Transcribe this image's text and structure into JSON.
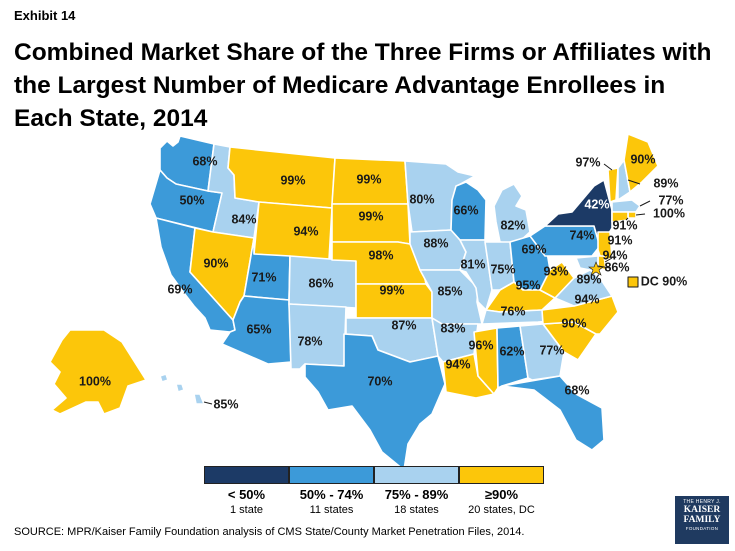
{
  "header": {
    "exhibit": "Exhibit 14",
    "title": "Combined Market Share of the Three Firms or Affiliates with the Largest Number of Medicare Advantage Enrollees in Each State, 2014"
  },
  "colors": {
    "lt50": "#1c3a66",
    "50to74": "#3c9ad9",
    "75to89": "#a9d2ef",
    "ge90": "#fcc60a",
    "border": "#ffffff",
    "outline": "#1a1a1a"
  },
  "states": [
    {
      "id": "WA",
      "value": "68%",
      "category": "50to74"
    },
    {
      "id": "OR",
      "value": "50%",
      "category": "50to74"
    },
    {
      "id": "CA",
      "value": "69%",
      "category": "50to74"
    },
    {
      "id": "ID",
      "value": "84%",
      "category": "75to89"
    },
    {
      "id": "NV",
      "value": "90%",
      "category": "ge90"
    },
    {
      "id": "MT",
      "value": "99%",
      "category": "ge90"
    },
    {
      "id": "WY",
      "value": "94%",
      "category": "ge90"
    },
    {
      "id": "UT",
      "value": "71%",
      "category": "50to74"
    },
    {
      "id": "AZ",
      "value": "65%",
      "category": "50to74"
    },
    {
      "id": "CO",
      "value": "86%",
      "category": "75to89"
    },
    {
      "id": "NM",
      "value": "78%",
      "category": "75to89"
    },
    {
      "id": "ND",
      "value": "99%",
      "category": "ge90"
    },
    {
      "id": "SD",
      "value": "99%",
      "category": "ge90"
    },
    {
      "id": "NE",
      "value": "98%",
      "category": "ge90"
    },
    {
      "id": "KS",
      "value": "99%",
      "category": "ge90"
    },
    {
      "id": "OK",
      "value": "87%",
      "category": "75to89"
    },
    {
      "id": "TX",
      "value": "70%",
      "category": "50to74"
    },
    {
      "id": "MN",
      "value": "80%",
      "category": "75to89"
    },
    {
      "id": "IA",
      "value": "88%",
      "category": "75to89"
    },
    {
      "id": "MO",
      "value": "85%",
      "category": "75to89"
    },
    {
      "id": "AR",
      "value": "83%",
      "category": "75to89"
    },
    {
      "id": "LA",
      "value": "94%",
      "category": "ge90"
    },
    {
      "id": "WI",
      "value": "66%",
      "category": "50to74"
    },
    {
      "id": "IL",
      "value": "81%",
      "category": "75to89"
    },
    {
      "id": "MI",
      "value": "82%",
      "category": "75to89"
    },
    {
      "id": "IN",
      "value": "75%",
      "category": "75to89"
    },
    {
      "id": "OH",
      "value": "69%",
      "category": "50to74"
    },
    {
      "id": "KY",
      "value": "95%",
      "category": "ge90"
    },
    {
      "id": "TN",
      "value": "76%",
      "category": "75to89"
    },
    {
      "id": "MS",
      "value": "96%",
      "category": "ge90"
    },
    {
      "id": "AL",
      "value": "62%",
      "category": "50to74"
    },
    {
      "id": "GA",
      "value": "77%",
      "category": "75to89"
    },
    {
      "id": "FL",
      "value": "68%",
      "category": "50to74"
    },
    {
      "id": "SC",
      "value": "90%",
      "category": "ge90"
    },
    {
      "id": "NC",
      "value": "94%",
      "category": "ge90"
    },
    {
      "id": "VA",
      "value": "89%",
      "category": "75to89"
    },
    {
      "id": "WV",
      "value": "93%",
      "category": "ge90"
    },
    {
      "id": "PA",
      "value": "74%",
      "category": "50to74"
    },
    {
      "id": "NY",
      "value": "42%",
      "category": "lt50"
    },
    {
      "id": "VT",
      "value": "97%",
      "category": "ge90"
    },
    {
      "id": "NH",
      "value": "89%",
      "category": "75to89"
    },
    {
      "id": "ME",
      "value": "90%",
      "category": "ge90"
    },
    {
      "id": "MA",
      "value": "77%",
      "category": "75to89"
    },
    {
      "id": "RI",
      "value": "100%",
      "category": "ge90"
    },
    {
      "id": "CT",
      "value": "91%",
      "category": "ge90"
    },
    {
      "id": "NJ",
      "value": "91%",
      "category": "ge90"
    },
    {
      "id": "DE",
      "value": "94%",
      "category": "ge90"
    },
    {
      "id": "MD",
      "value": "86%",
      "category": "75to89"
    },
    {
      "id": "DC",
      "value": "DC 90%",
      "category": "ge90"
    },
    {
      "id": "AK",
      "value": "100%",
      "category": "ge90"
    },
    {
      "id": "HI",
      "value": "85%",
      "category": "75to89"
    }
  ],
  "legend": [
    {
      "category": "lt50",
      "range": "< 50%",
      "count": "1 state"
    },
    {
      "category": "50to74",
      "range": "50% - 74%",
      "count": "11 states"
    },
    {
      "category": "75to89",
      "range": "75% - 89%",
      "count": "18 states"
    },
    {
      "category": "ge90",
      "range": "≥90%",
      "count": "20 states, DC"
    }
  ],
  "source": "SOURCE: MPR/Kaiser Family Foundation analysis of CMS State/County Market Penetration Files, 2014.",
  "logo": {
    "line1": "THE HENRY J.",
    "line2a": "KAISER",
    "line2b": "FAMILY",
    "line3": "FOUNDATION"
  }
}
